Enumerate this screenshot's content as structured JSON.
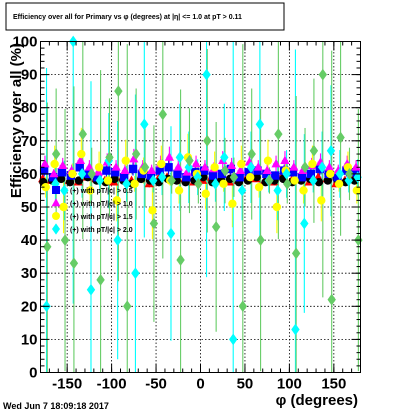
{
  "chart_data": {
    "type": "scatter",
    "title": "Efficiency over all for Primary vs φ (degrees) at |η| <= 1.0 at pT > 0.11",
    "xlabel": "φ (degrees)",
    "ylabel": "Efficiency over all (%)",
    "xlim": [
      -180,
      180
    ],
    "ylim": [
      0,
      100
    ],
    "x_ticks": [
      "-150",
      "-100",
      "-50",
      "0",
      "50",
      "100",
      "150"
    ],
    "y_ticks": [
      "0",
      "10",
      "20",
      "30",
      "40",
      "50",
      "60",
      "70",
      "80",
      "90",
      "100"
    ],
    "grid": true,
    "legend_position": "left",
    "footer": "Wed Jun  7 18:09:18 2017",
    "series": [
      {
        "name": "",
        "color": "#ff0000",
        "marker": "triangle",
        "error_scale": 1,
        "y": [
          58.5,
          58,
          59.5,
          58,
          57.5,
          59,
          58.5,
          58,
          57.5,
          59,
          58,
          58.5,
          57,
          58.5,
          59,
          58,
          58.5,
          57.5,
          58,
          59,
          58.5,
          57.5,
          58,
          59,
          58.5,
          58,
          57.5,
          59.5,
          58,
          58.5,
          57.5,
          59,
          58.5,
          57,
          58,
          59.5
        ]
      },
      {
        "name": "",
        "color": "#000000",
        "marker": "circle",
        "error_scale": 1,
        "y": [
          57.5,
          58,
          58.5,
          57.5,
          58,
          59,
          58,
          57.5,
          58.5,
          58,
          57,
          58.5,
          58,
          57.5,
          58.5,
          58,
          57.5,
          58,
          59,
          57.5,
          58,
          58.5,
          57.5,
          58,
          59,
          57.5,
          58,
          58.5,
          57.5,
          58,
          58.5,
          57.5,
          58,
          58.5,
          57.5,
          58
        ]
      },
      {
        "name": "(+) with pT/|c| > 0.5",
        "color": "#0000ff",
        "marker": "square",
        "error_scale": 1,
        "y": [
          61,
          59,
          60.5,
          59.5,
          62,
          60,
          59,
          61,
          60.5,
          59,
          61.5,
          60,
          59.5,
          61,
          62,
          60,
          59,
          60.5,
          61,
          59.5,
          60,
          61.5,
          59,
          60.5,
          61,
          60,
          59.5,
          61,
          60.5,
          59,
          60,
          61.5,
          60,
          59,
          61,
          60.5
        ]
      },
      {
        "name": "(+) with pT/|c| > 1.0",
        "color": "#ff00ff",
        "marker": "triangle",
        "error_scale": 1,
        "y": [
          63,
          60,
          62.5,
          61,
          64,
          62,
          60.5,
          63.5,
          62,
          61,
          64.5,
          62,
          61,
          63,
          65,
          62,
          60.5,
          63,
          62,
          61.5,
          64,
          62.5,
          61,
          63.5,
          62,
          61,
          63,
          64,
          62,
          61,
          62.5,
          63.5,
          62,
          61,
          63,
          62
        ]
      },
      {
        "name": "(+) with pT/|c| > 1.5",
        "color": "#ffff00",
        "marker": "circle",
        "error_scale": 2.2,
        "y": [
          56,
          63,
          50,
          60,
          66,
          55,
          62,
          58,
          52,
          64,
          57,
          61,
          49,
          63,
          58,
          55,
          65,
          60,
          54,
          62,
          57,
          51,
          63,
          59,
          56,
          64,
          50,
          61,
          58,
          55,
          63,
          52,
          60,
          57,
          62,
          55
        ]
      },
      {
        "name": "(+) with pT/|c| > 2.0",
        "color": "#00ffff",
        "marker": "diamond",
        "error_scale": 5,
        "y": [
          20,
          57,
          55,
          100,
          60,
          25,
          58,
          64,
          40,
          57,
          30,
          75,
          58,
          59,
          42,
          65,
          62,
          59,
          90,
          57,
          65,
          10,
          55,
          62,
          75,
          58,
          55,
          60,
          13,
          45,
          58,
          62,
          67,
          60,
          58,
          59
        ]
      },
      {
        "name": "",
        "color": "#66cc66",
        "marker": "diamond",
        "error_scale": 5.5,
        "y": [
          38,
          66,
          40,
          33,
          72,
          60,
          28,
          65,
          85,
          20,
          66,
          62,
          45,
          78,
          58,
          34,
          64,
          57,
          70,
          44,
          61,
          59,
          20,
          66,
          40,
          58,
          72,
          57,
          36,
          62,
          67,
          90,
          22,
          71,
          60,
          40
        ]
      }
    ]
  }
}
